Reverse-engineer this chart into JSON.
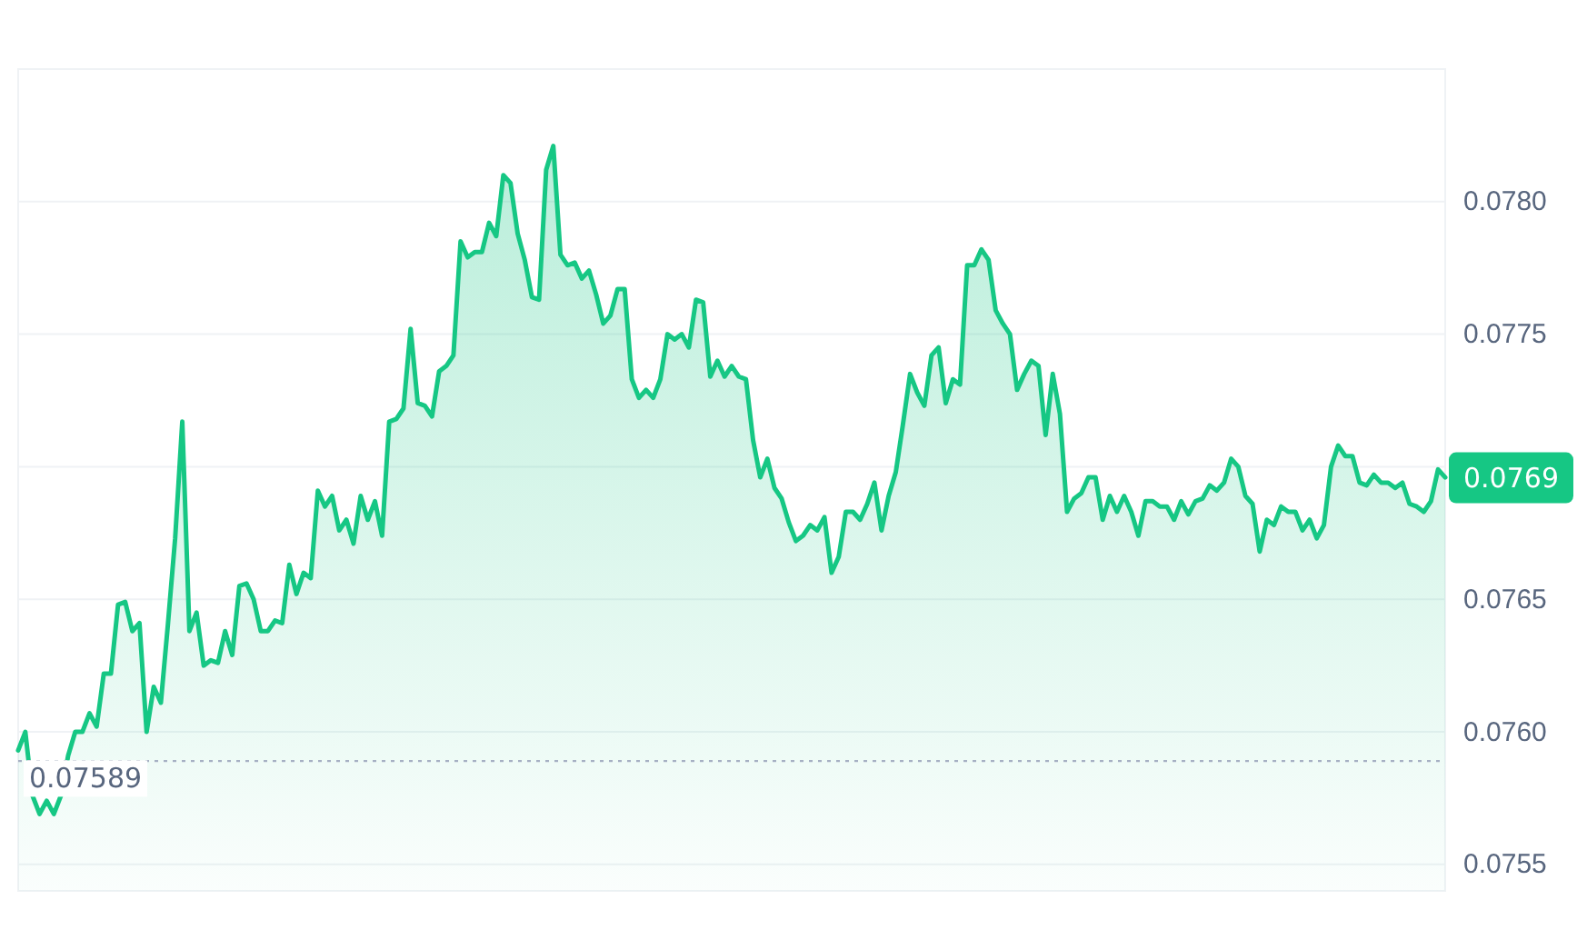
{
  "chart_data": {
    "type": "area",
    "categories": [
      null,
      null,
      null,
      null,
      null,
      null,
      null,
      null,
      null,
      null,
      null,
      null,
      null,
      null,
      null,
      null,
      null,
      null,
      null,
      null,
      null,
      null,
      null,
      null,
      null,
      null,
      null,
      null,
      null,
      null,
      null,
      null,
      null,
      null,
      null,
      null,
      null,
      null,
      null,
      null,
      null,
      null,
      null,
      null,
      null,
      null,
      null,
      null,
      null,
      null,
      null,
      null,
      null,
      null,
      null,
      null,
      null,
      null,
      null,
      null,
      null,
      null,
      null,
      null,
      null,
      null,
      null,
      null,
      null,
      null,
      null,
      null,
      null,
      null,
      null,
      null,
      null,
      null,
      null,
      null,
      null,
      null,
      null,
      null,
      null,
      null,
      null,
      null,
      null,
      null,
      null,
      null,
      null,
      null,
      null,
      null,
      null,
      null,
      null,
      null,
      null,
      null,
      null,
      null,
      null,
      null,
      null,
      null,
      null,
      null,
      null,
      null,
      null,
      null,
      null,
      null,
      null,
      null,
      null,
      null,
      null,
      null,
      null,
      null,
      null,
      null,
      null,
      null,
      null,
      null,
      null,
      null,
      null,
      null,
      null,
      null,
      null,
      null,
      null,
      null,
      null,
      null,
      null,
      null,
      null,
      null,
      null,
      null,
      null,
      null,
      null,
      null,
      null,
      null,
      null,
      null,
      null,
      null,
      null,
      null,
      null,
      null,
      null,
      null,
      null,
      null,
      null,
      null,
      null,
      null,
      null,
      null,
      null,
      null,
      null,
      null,
      null,
      null,
      null,
      null,
      null,
      null,
      null,
      null,
      null,
      null,
      null,
      null,
      null,
      null,
      null,
      null,
      null,
      null,
      null,
      null,
      null,
      null,
      null,
      null,
      null
    ],
    "series": [
      {
        "color": "#16c784",
        "values": [
          0.07593,
          0.076,
          0.07576,
          0.07569,
          0.07574,
          0.07569,
          0.07576,
          0.07591,
          0.076,
          0.076,
          0.07607,
          0.07602,
          0.07622,
          0.07622,
          0.07648,
          0.07649,
          0.07638,
          0.07641,
          0.076,
          0.07617,
          0.07611,
          0.07641,
          0.07673,
          0.07717,
          0.07638,
          0.07645,
          0.07625,
          0.07627,
          0.07626,
          0.07638,
          0.07629,
          0.07655,
          0.07656,
          0.0765,
          0.07638,
          0.07638,
          0.07642,
          0.07641,
          0.07663,
          0.07652,
          0.0766,
          0.07658,
          0.07691,
          0.07685,
          0.07689,
          0.07676,
          0.0768,
          0.07671,
          0.07689,
          0.0768,
          0.07687,
          0.07674,
          0.07717,
          0.07718,
          0.07722,
          0.07752,
          0.07724,
          0.07723,
          0.07719,
          0.07736,
          0.07738,
          0.07742,
          0.07785,
          0.07779,
          0.07781,
          0.07781,
          0.07792,
          0.07787,
          0.0781,
          0.07807,
          0.07788,
          0.07778,
          0.07764,
          0.07763,
          0.07812,
          0.07821,
          0.0778,
          0.07776,
          0.07777,
          0.07771,
          0.07774,
          0.07765,
          0.07754,
          0.07757,
          0.07767,
          0.07767,
          0.07733,
          0.07726,
          0.07729,
          0.07726,
          0.07733,
          0.0775,
          0.07748,
          0.0775,
          0.07745,
          0.07763,
          0.07762,
          0.07734,
          0.0774,
          0.07734,
          0.07738,
          0.07734,
          0.07733,
          0.0771,
          0.07696,
          0.07703,
          0.07692,
          0.07688,
          0.07679,
          0.07672,
          0.07674,
          0.07678,
          0.07676,
          0.07681,
          0.0766,
          0.07666,
          0.07683,
          0.07683,
          0.0768,
          0.07686,
          0.07694,
          0.07676,
          0.07689,
          0.07698,
          0.07716,
          0.07735,
          0.07728,
          0.07723,
          0.07742,
          0.07745,
          0.07724,
          0.07733,
          0.07731,
          0.07776,
          0.07776,
          0.07782,
          0.07778,
          0.07759,
          0.07754,
          0.0775,
          0.07729,
          0.07735,
          0.0774,
          0.07738,
          0.07712,
          0.07735,
          0.0772,
          0.07683,
          0.07688,
          0.0769,
          0.07696,
          0.07696,
          0.0768,
          0.07689,
          0.07683,
          0.07689,
          0.07683,
          0.07674,
          0.07687,
          0.07687,
          0.07685,
          0.07685,
          0.0768,
          0.07687,
          0.07682,
          0.07687,
          0.07688,
          0.07693,
          0.07691,
          0.07694,
          0.07703,
          0.077,
          0.07689,
          0.07686,
          0.07668,
          0.0768,
          0.07678,
          0.07685,
          0.07683,
          0.07683,
          0.07676,
          0.0768,
          0.07673,
          0.07678,
          0.077,
          0.07708,
          0.07704,
          0.07704,
          0.07694,
          0.07693,
          0.07697,
          0.07694,
          0.07694,
          0.07692,
          0.07694,
          0.07686,
          0.07685,
          0.07683,
          0.07687,
          0.07699,
          0.07696
        ]
      }
    ],
    "ylim": [
      0.0754,
      0.0785
    ],
    "yticks": [
      0.0755,
      {
        "value": 0.076,
        "label": "0.0760"
      },
      0.0765,
      {
        "value": 0.077,
        "label": null
      },
      0.0775,
      {
        "value": 0.078,
        "label": "0.0780"
      }
    ],
    "grid": "y",
    "ref_lines": [
      {
        "axis": "y",
        "value": 0.07589,
        "label": "0.07589",
        "color": "#a6b0c3",
        "line_style": "dotted"
      }
    ],
    "annotations": [
      "0.0769"
    ],
    "tick_labels": "y"
  }
}
